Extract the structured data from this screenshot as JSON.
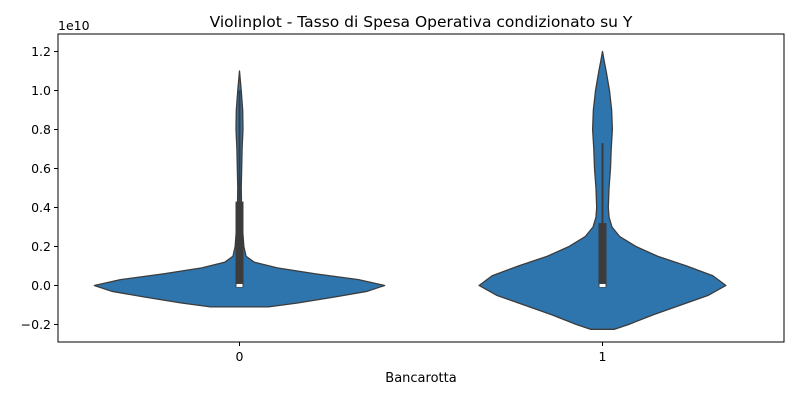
{
  "chart_data": {
    "type": "violin",
    "title": "Violinplot - Tasso di Spesa Operativa condizionato su Y",
    "xlabel": "Bancarotta",
    "ylabel": "",
    "offset_text": "1e10",
    "ylim": [
      -0.29,
      1.29
    ],
    "yticks": [
      -0.2,
      0.0,
      0.2,
      0.4,
      0.6,
      0.8,
      1.0,
      1.2
    ],
    "ytick_labels": [
      "−0.2",
      "0.0",
      "0.2",
      "0.4",
      "0.6",
      "0.8",
      "1.0",
      "1.2"
    ],
    "categories": [
      "0",
      "1"
    ],
    "color": "#2f75ad",
    "edge_color": "#3c3c3c",
    "violins": [
      {
        "category": "0",
        "whisker_low": -0.01,
        "whisker_high": 1.0,
        "q1": -0.01,
        "q3": 0.43,
        "median": 0.0,
        "density_profile": [
          [
            -0.11,
            0.2
          ],
          [
            -0.09,
            0.4
          ],
          [
            -0.06,
            0.65
          ],
          [
            -0.03,
            0.88
          ],
          [
            0.0,
            1.0
          ],
          [
            0.03,
            0.82
          ],
          [
            0.06,
            0.52
          ],
          [
            0.09,
            0.26
          ],
          [
            0.12,
            0.1
          ],
          [
            0.15,
            0.045
          ],
          [
            0.2,
            0.03
          ],
          [
            0.3,
            0.02
          ],
          [
            0.4,
            0.014
          ],
          [
            0.5,
            0.012
          ],
          [
            0.6,
            0.015
          ],
          [
            0.7,
            0.018
          ],
          [
            0.8,
            0.024
          ],
          [
            0.9,
            0.022
          ],
          [
            1.0,
            0.012
          ],
          [
            1.05,
            0.006
          ],
          [
            1.1,
            0.0
          ]
        ]
      },
      {
        "category": "1",
        "whisker_low": -0.01,
        "whisker_high": 0.73,
        "q1": -0.01,
        "q3": 0.32,
        "median": 0.0,
        "density_profile": [
          [
            -0.225,
            0.08
          ],
          [
            -0.2,
            0.18
          ],
          [
            -0.15,
            0.35
          ],
          [
            -0.1,
            0.54
          ],
          [
            -0.05,
            0.73
          ],
          [
            0.0,
            0.85
          ],
          [
            0.05,
            0.76
          ],
          [
            0.1,
            0.58
          ],
          [
            0.15,
            0.38
          ],
          [
            0.2,
            0.23
          ],
          [
            0.25,
            0.12
          ],
          [
            0.3,
            0.065
          ],
          [
            0.35,
            0.045
          ],
          [
            0.4,
            0.04
          ],
          [
            0.5,
            0.045
          ],
          [
            0.6,
            0.055
          ],
          [
            0.7,
            0.06
          ],
          [
            0.8,
            0.068
          ],
          [
            0.9,
            0.063
          ],
          [
            1.0,
            0.048
          ],
          [
            1.1,
            0.025
          ],
          [
            1.15,
            0.012
          ],
          [
            1.2,
            0.0
          ]
        ]
      }
    ],
    "grid": false,
    "legend": "none"
  }
}
